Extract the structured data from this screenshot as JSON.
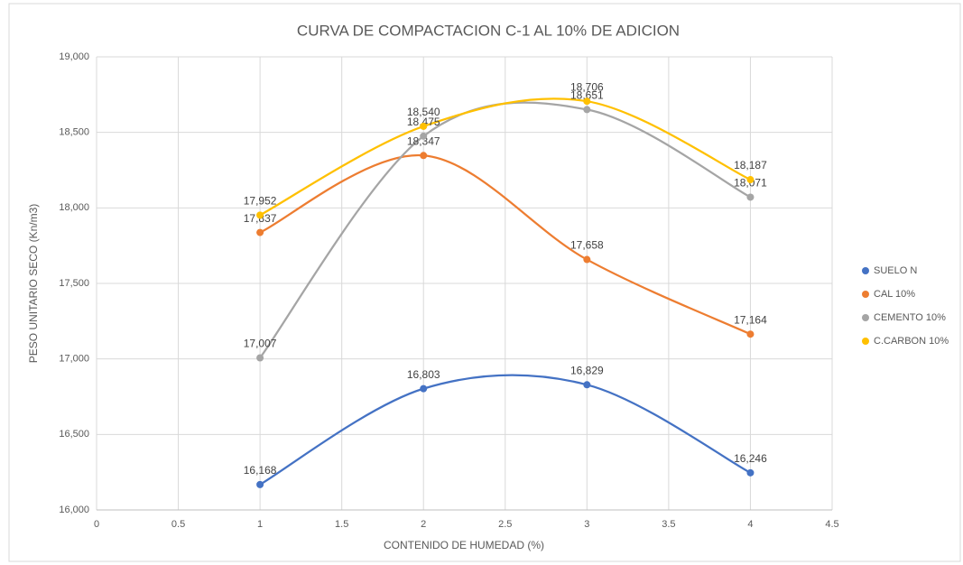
{
  "chart_data": {
    "type": "scatter-smooth",
    "title": "CURVA DE COMPACTACION C-1 AL 10% DE ADICION",
    "x_label": "CONTENIDO DE HUMEDAD (%)",
    "y_label": "PESO UNITARIO SECO (Kn/m3)",
    "x": [
      1,
      2,
      3,
      4
    ],
    "series": [
      {
        "name": "SUELO N",
        "color": "#4472c4",
        "values": [
          16168,
          16803,
          16829,
          16246
        ],
        "value_labels": [
          "16,168",
          "16,803",
          "16,829",
          "16,246"
        ]
      },
      {
        "name": "CAL 10%",
        "color": "#ed7d31",
        "values": [
          17837,
          18347,
          17658,
          17164
        ],
        "value_labels": [
          "17,837",
          "18,347",
          "17,658",
          "17,164"
        ]
      },
      {
        "name": "CEMENTO 10%",
        "color": "#a5a5a5",
        "values": [
          17007,
          18475,
          18651,
          18071
        ],
        "value_labels": [
          "17,007",
          "18,475",
          "18,651",
          "18,071"
        ]
      },
      {
        "name": "C.CARBON 10%",
        "color": "#ffc000",
        "values": [
          17952,
          18540,
          18706,
          18187
        ],
        "value_labels": [
          "17,952",
          "18,540",
          "18,706",
          "18,187"
        ]
      }
    ],
    "xlim": [
      0,
      4.5
    ],
    "xticks": [
      0,
      0.5,
      1,
      1.5,
      2,
      2.5,
      3,
      3.5,
      4,
      4.5
    ],
    "ylim": [
      16000,
      19000
    ],
    "yticks": [
      {
        "value": 16000,
        "label": "16,000"
      },
      {
        "value": 16500,
        "label": "16,500"
      },
      {
        "value": 17000,
        "label": "17,000"
      },
      {
        "value": 17500,
        "label": "17,500"
      },
      {
        "value": 18000,
        "label": "18,000"
      },
      {
        "value": 18500,
        "label": "18,500"
      },
      {
        "value": 19000,
        "label": "19,000"
      }
    ],
    "grid": true,
    "legend": "right"
  }
}
